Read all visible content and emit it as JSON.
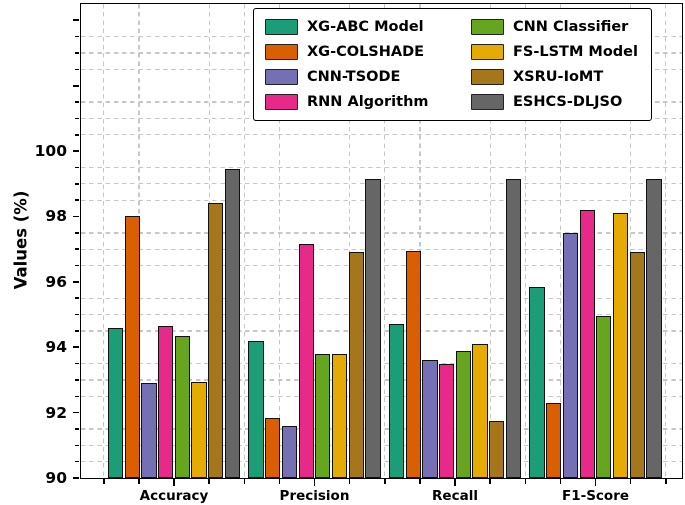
{
  "chart_data": {
    "type": "bar",
    "title": "",
    "xlabel": "",
    "ylabel": "Values (%)",
    "categories": [
      "Accuracy",
      "Precision",
      "Recall",
      "F1-Score"
    ],
    "series": [
      {
        "name": "XG-ABC Model",
        "color": "#1b9e77",
        "values": [
          94.6,
          94.2,
          94.7,
          95.85
        ]
      },
      {
        "name": "XG-COLSHADE",
        "color": "#d95f02",
        "values": [
          98.0,
          91.85,
          96.95,
          92.3
        ]
      },
      {
        "name": "CNN-TSODE",
        "color": "#7570b3",
        "values": [
          92.9,
          91.6,
          93.6,
          97.5
        ]
      },
      {
        "name": "RNN Algorithm",
        "color": "#e7298a",
        "values": [
          94.65,
          97.15,
          93.5,
          98.2
        ]
      },
      {
        "name": "CNN Classifier",
        "color": "#66a61e",
        "values": [
          94.35,
          93.8,
          93.9,
          94.95
        ]
      },
      {
        "name": "FS-LSTM Model",
        "color": "#e6ab02",
        "values": [
          92.95,
          93.8,
          94.1,
          98.1
        ]
      },
      {
        "name": "XSRU-IoMT",
        "color": "#a6761d",
        "values": [
          98.4,
          96.9,
          91.75,
          96.9
        ]
      },
      {
        "name": "ESHCS-DLJSO",
        "color": "#666666",
        "values": [
          99.45,
          99.15,
          99.15,
          99.15
        ]
      }
    ],
    "ylim": [
      90,
      104.5
    ],
    "yticks": [
      90,
      92,
      94,
      96,
      98,
      100
    ],
    "grid": {
      "style": "dashed",
      "color": "#c7c7c7",
      "minor_step": 0.5
    },
    "legend": {
      "position": "upper center",
      "columns": 2
    },
    "bar_edge_color": "#111111"
  }
}
